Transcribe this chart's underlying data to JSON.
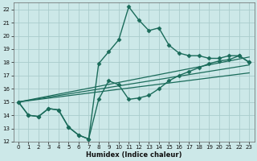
{
  "xlabel": "Humidex (Indice chaleur)",
  "bg_color": "#cce8e8",
  "grid_color": "#aacccc",
  "line_color": "#1a6b5a",
  "xlim": [
    -0.5,
    23.5
  ],
  "ylim": [
    12,
    22.5
  ],
  "xtick_labels": [
    "0",
    "1",
    "2",
    "3",
    "4",
    "5",
    "6",
    "7",
    "8",
    "9",
    "10",
    "11",
    "12",
    "13",
    "14",
    "15",
    "16",
    "17",
    "18",
    "19",
    "20",
    "21",
    "22",
    "23"
  ],
  "xticks": [
    0,
    1,
    2,
    3,
    4,
    5,
    6,
    7,
    8,
    9,
    10,
    11,
    12,
    13,
    14,
    15,
    16,
    17,
    18,
    19,
    20,
    21,
    22,
    23
  ],
  "yticks": [
    12,
    13,
    14,
    15,
    16,
    17,
    18,
    19,
    20,
    21,
    22
  ],
  "series": [
    {
      "x": [
        0,
        1,
        2,
        3,
        4,
        5,
        6,
        7,
        8,
        9,
        10,
        11,
        12,
        13,
        14,
        15,
        16,
        17,
        18,
        19,
        20,
        21,
        22,
        23
      ],
      "y": [
        15.0,
        14.0,
        13.9,
        14.5,
        14.4,
        13.1,
        12.5,
        12.2,
        15.2,
        16.6,
        16.3,
        15.2,
        15.3,
        15.5,
        16.0,
        16.6,
        17.0,
        17.3,
        17.6,
        17.9,
        18.1,
        18.2,
        18.5,
        18.0
      ],
      "marker": "D",
      "markersize": 2.5,
      "linewidth": 1.0
    },
    {
      "x": [
        0,
        1,
        2,
        3,
        4,
        5,
        6,
        7,
        8,
        9,
        10,
        11,
        12,
        13,
        14,
        15,
        16,
        17,
        18,
        19,
        20,
        21,
        22,
        23
      ],
      "y": [
        15.0,
        14.0,
        13.9,
        14.5,
        14.4,
        13.1,
        12.5,
        12.2,
        17.9,
        18.8,
        19.7,
        22.2,
        21.2,
        20.4,
        20.6,
        19.3,
        18.7,
        18.5,
        18.5,
        18.3,
        18.3,
        18.5,
        18.5,
        18.0
      ],
      "marker": "D",
      "markersize": 2.5,
      "linewidth": 1.0
    },
    {
      "x": [
        0,
        23
      ],
      "y": [
        15.0,
        17.2
      ],
      "marker": null,
      "linewidth": 0.9
    },
    {
      "x": [
        0,
        23
      ],
      "y": [
        15.0,
        17.8
      ],
      "marker": null,
      "linewidth": 0.9
    },
    {
      "x": [
        0,
        23
      ],
      "y": [
        15.0,
        18.4
      ],
      "marker": null,
      "linewidth": 0.9
    }
  ]
}
